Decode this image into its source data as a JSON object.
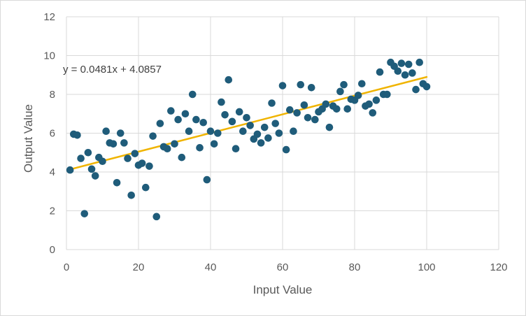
{
  "chart_data": {
    "type": "scatter",
    "title": "",
    "xlabel": "Input Value",
    "ylabel": "Output Value",
    "xlim": [
      0,
      120
    ],
    "ylim": [
      0,
      12
    ],
    "x_ticks": [
      "0",
      "20",
      "40",
      "60",
      "80",
      "100",
      "120"
    ],
    "y_ticks": [
      "0",
      "2",
      "4",
      "6",
      "8",
      "10",
      "12"
    ],
    "grid": true,
    "legend": "none",
    "colors": {
      "points": "#1f5c7a",
      "trendline": "#f0b400",
      "grid": "#d9d9d9",
      "text": "#595959"
    },
    "series": [
      {
        "points": [
          [
            1,
            4.1
          ],
          [
            2,
            5.95
          ],
          [
            3,
            5.9
          ],
          [
            4,
            4.7
          ],
          [
            5,
            1.85
          ],
          [
            6,
            5.0
          ],
          [
            7,
            4.15
          ],
          [
            8,
            3.8
          ],
          [
            9,
            4.75
          ],
          [
            10,
            4.55
          ],
          [
            11,
            6.1
          ],
          [
            12,
            5.5
          ],
          [
            13,
            5.45
          ],
          [
            14,
            3.45
          ],
          [
            15,
            6.0
          ],
          [
            16,
            5.5
          ],
          [
            17,
            4.7
          ],
          [
            18,
            2.8
          ],
          [
            19,
            4.95
          ],
          [
            20,
            4.35
          ],
          [
            21,
            4.45
          ],
          [
            22,
            3.2
          ],
          [
            23,
            4.3
          ],
          [
            24,
            5.85
          ],
          [
            25,
            1.7
          ],
          [
            26,
            6.5
          ],
          [
            27,
            5.3
          ],
          [
            28,
            5.2
          ],
          [
            29,
            7.15
          ],
          [
            30,
            5.45
          ],
          [
            31,
            6.7
          ],
          [
            32,
            4.75
          ],
          [
            33,
            7.0
          ],
          [
            34,
            6.1
          ],
          [
            35,
            8.0
          ],
          [
            36,
            6.7
          ],
          [
            37,
            5.25
          ],
          [
            38,
            6.55
          ],
          [
            39,
            3.6
          ],
          [
            40,
            6.1
          ],
          [
            41,
            5.45
          ],
          [
            42,
            6.0
          ],
          [
            43,
            7.6
          ],
          [
            44,
            6.95
          ],
          [
            45,
            8.75
          ],
          [
            46,
            6.6
          ],
          [
            47,
            5.2
          ],
          [
            48,
            7.1
          ],
          [
            49,
            6.1
          ],
          [
            50,
            6.8
          ],
          [
            51,
            6.4
          ],
          [
            52,
            5.7
          ],
          [
            53,
            5.95
          ],
          [
            54,
            5.5
          ],
          [
            55,
            6.3
          ],
          [
            56,
            5.75
          ],
          [
            57,
            7.55
          ],
          [
            58,
            6.5
          ],
          [
            59,
            6.0
          ],
          [
            60,
            8.45
          ],
          [
            61,
            5.15
          ],
          [
            62,
            7.2
          ],
          [
            63,
            6.1
          ],
          [
            64,
            7.05
          ],
          [
            65,
            8.5
          ],
          [
            66,
            7.45
          ],
          [
            67,
            6.8
          ],
          [
            68,
            8.35
          ],
          [
            69,
            6.7
          ],
          [
            70,
            7.1
          ],
          [
            71,
            7.25
          ],
          [
            72,
            7.5
          ],
          [
            73,
            6.3
          ],
          [
            74,
            7.4
          ],
          [
            75,
            7.25
          ],
          [
            76,
            8.15
          ],
          [
            77,
            8.5
          ],
          [
            78,
            7.25
          ],
          [
            79,
            7.75
          ],
          [
            80,
            7.7
          ],
          [
            81,
            7.95
          ],
          [
            82,
            8.55
          ],
          [
            83,
            7.4
          ],
          [
            84,
            7.5
          ],
          [
            85,
            7.05
          ],
          [
            86,
            7.7
          ],
          [
            87,
            9.15
          ],
          [
            88,
            8.0
          ],
          [
            89,
            8.0
          ],
          [
            90,
            9.65
          ],
          [
            91,
            9.45
          ],
          [
            92,
            9.2
          ],
          [
            93,
            9.6
          ],
          [
            94,
            9.0
          ],
          [
            95,
            9.55
          ],
          [
            96,
            9.1
          ],
          [
            97,
            8.25
          ],
          [
            98,
            9.65
          ],
          [
            99,
            8.55
          ],
          [
            100,
            8.4
          ]
        ]
      }
    ],
    "trendline": {
      "slope": 0.0481,
      "intercept": 4.0857,
      "x_range": [
        1,
        100
      ],
      "equation_label": "y = 0.0481x + 4.0857"
    }
  }
}
